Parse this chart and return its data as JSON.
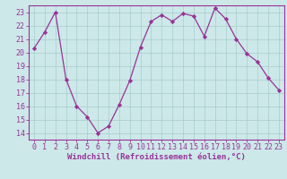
{
  "x": [
    0,
    1,
    2,
    3,
    4,
    5,
    6,
    7,
    8,
    9,
    10,
    11,
    12,
    13,
    14,
    15,
    16,
    17,
    18,
    19,
    20,
    21,
    22,
    23
  ],
  "y": [
    20.3,
    21.5,
    23.0,
    18.0,
    16.0,
    15.2,
    14.0,
    14.5,
    16.1,
    17.9,
    20.4,
    22.3,
    22.8,
    22.3,
    22.9,
    22.7,
    21.2,
    23.3,
    22.5,
    21.0,
    19.9,
    19.3,
    18.1,
    17.2
  ],
  "line_color": "#993399",
  "marker": "D",
  "marker_size": 2.2,
  "linewidth": 0.9,
  "bg_color": "#cce8e8",
  "grid_color": "#aacccc",
  "axis_color": "#993399",
  "tick_color": "#993399",
  "xlabel": "Windchill (Refroidissement éolien,°C)",
  "xlabel_color": "#993399",
  "xlabel_fontsize": 6.5,
  "ylabel_ticks": [
    14,
    15,
    16,
    17,
    18,
    19,
    20,
    21,
    22,
    23
  ],
  "xlim": [
    -0.5,
    23.5
  ],
  "ylim": [
    13.5,
    23.5
  ],
  "xtick_labels": [
    "0",
    "1",
    "2",
    "3",
    "4",
    "5",
    "6",
    "7",
    "8",
    "9",
    "10",
    "11",
    "12",
    "13",
    "14",
    "15",
    "16",
    "17",
    "18",
    "19",
    "20",
    "21",
    "22",
    "23"
  ],
  "tick_fontsize": 6.0
}
